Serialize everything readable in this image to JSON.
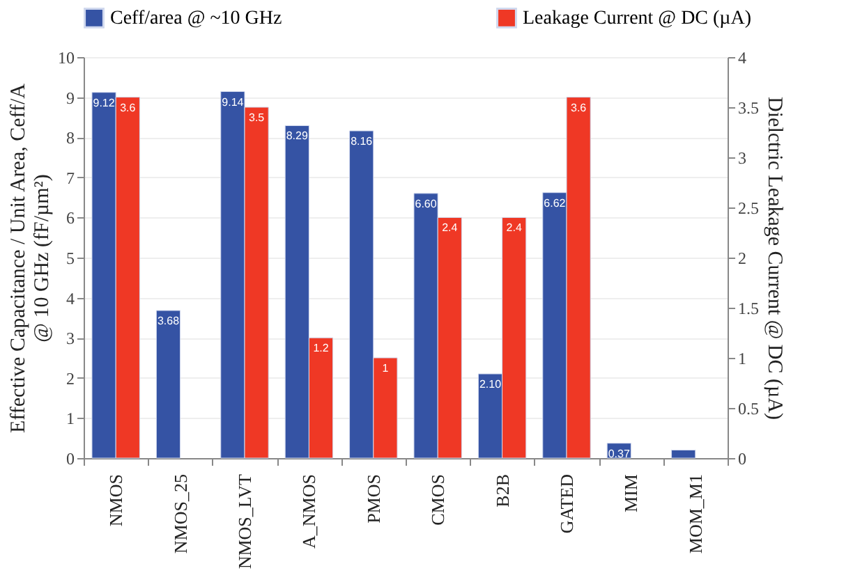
{
  "chart_data": {
    "type": "bar",
    "categories": [
      "NMOS",
      "NMOS_25",
      "NMOS_LVT",
      "A_NMOS",
      "PMOS",
      "CMOS",
      "B2B",
      "GATED",
      "MIM",
      "MOM_M1"
    ],
    "series": [
      {
        "name": "Ceff/area @ ~10 GHz",
        "color": "#3553a4",
        "values": [
          9.12,
          3.68,
          9.14,
          8.29,
          8.16,
          6.6,
          2.1,
          6.62,
          0.37,
          0.2
        ],
        "value_labels": [
          "9.12",
          "3.68",
          "9.14",
          "8.29",
          "8.16",
          "6.60",
          "2.10",
          "6.62",
          "0.37",
          null
        ]
      },
      {
        "name": "Leakage Current   @ DC (µA)",
        "color": "#ef3825",
        "axis": "y2",
        "values": [
          3.6,
          null,
          3.5,
          1.2,
          1,
          2.4,
          2.4,
          3.6,
          null,
          null
        ],
        "value_labels": [
          "3.6",
          null,
          "3.5",
          "1.2",
          "1",
          "2.4",
          "2.4",
          "3.6",
          null,
          null
        ]
      }
    ],
    "ylabel": "Effective Capacitance / Unit Area, Ceff/A\n@ 10 GHz (fF/µm²)",
    "y2label": "Dielctric Leakage Current @ DC (µA)",
    "ylim": [
      0,
      10
    ],
    "yticks": [
      0,
      1,
      2,
      3,
      4,
      5,
      6,
      7,
      8,
      9,
      10
    ],
    "y2lim": [
      0,
      4
    ],
    "y2ticks": [
      0,
      0.5,
      1,
      1.5,
      2,
      2.5,
      3,
      3.5,
      4
    ],
    "grid": "y",
    "legend": "top"
  }
}
